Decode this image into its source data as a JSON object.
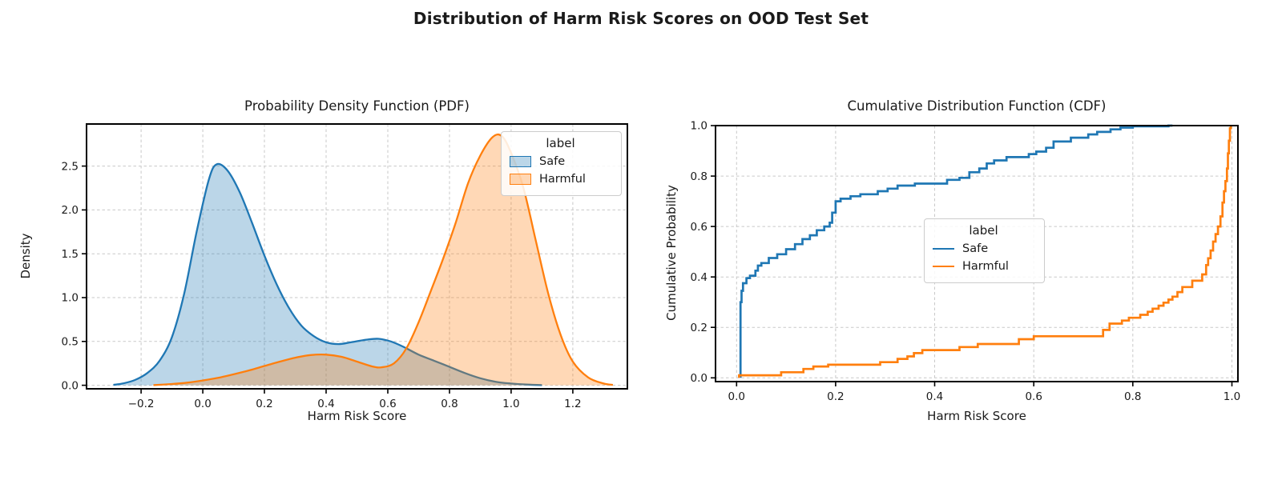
{
  "figure": {
    "suptitle": "Distribution of Harm Risk Scores on OOD Test Set"
  },
  "palette": {
    "safe": "#1f77b4",
    "harmful": "#ff7f0e",
    "grid": "#c9c9c9",
    "spine": "#000000"
  },
  "chart_data": [
    {
      "type": "area",
      "subtype": "kde-pdf",
      "title": "Probability Density Function (PDF)",
      "xlabel": "Harm Risk Score",
      "ylabel": "Density",
      "xlim": [
        -0.377,
        1.377
      ],
      "ylim": [
        -0.04,
        2.98
      ],
      "grid": true,
      "xticks": [
        -0.2,
        0.0,
        0.2,
        0.4,
        0.6,
        0.8,
        1.0,
        1.2
      ],
      "xtick_labels": [
        "−0.2",
        "0.0",
        "0.2",
        "0.4",
        "0.6",
        "0.8",
        "1.0",
        "1.2"
      ],
      "yticks": [
        0.0,
        0.5,
        1.0,
        1.5,
        2.0,
        2.5
      ],
      "ytick_labels": [
        "0.0",
        "0.5",
        "1.0",
        "1.5",
        "2.0",
        "2.5"
      ],
      "legend": {
        "title": "label",
        "entries": [
          "Safe",
          "Harmful"
        ],
        "position": "upper right",
        "swatch": "patch"
      },
      "series": [
        {
          "name": "Safe",
          "color": "#1f77b4",
          "fill_opacity": 0.3,
          "points": [
            [
              -0.29,
              0.005
            ],
            [
              -0.26,
              0.02
            ],
            [
              -0.22,
              0.06
            ],
            [
              -0.18,
              0.14
            ],
            [
              -0.14,
              0.28
            ],
            [
              -0.1,
              0.55
            ],
            [
              -0.06,
              1.05
            ],
            [
              -0.02,
              1.75
            ],
            [
              0.02,
              2.35
            ],
            [
              0.045,
              2.52
            ],
            [
              0.08,
              2.45
            ],
            [
              0.12,
              2.2
            ],
            [
              0.16,
              1.85
            ],
            [
              0.2,
              1.48
            ],
            [
              0.24,
              1.15
            ],
            [
              0.28,
              0.88
            ],
            [
              0.32,
              0.68
            ],
            [
              0.36,
              0.56
            ],
            [
              0.4,
              0.49
            ],
            [
              0.44,
              0.47
            ],
            [
              0.48,
              0.49
            ],
            [
              0.53,
              0.52
            ],
            [
              0.57,
              0.53
            ],
            [
              0.61,
              0.5
            ],
            [
              0.65,
              0.44
            ],
            [
              0.7,
              0.35
            ],
            [
              0.75,
              0.28
            ],
            [
              0.8,
              0.21
            ],
            [
              0.85,
              0.14
            ],
            [
              0.9,
              0.08
            ],
            [
              0.95,
              0.04
            ],
            [
              1.0,
              0.02
            ],
            [
              1.05,
              0.008
            ],
            [
              1.1,
              0.002
            ]
          ]
        },
        {
          "name": "Harmful",
          "color": "#ff7f0e",
          "fill_opacity": 0.3,
          "points": [
            [
              -0.16,
              0.002
            ],
            [
              -0.1,
              0.015
            ],
            [
              -0.05,
              0.03
            ],
            [
              0.0,
              0.055
            ],
            [
              0.05,
              0.085
            ],
            [
              0.1,
              0.125
            ],
            [
              0.15,
              0.17
            ],
            [
              0.2,
              0.22
            ],
            [
              0.25,
              0.27
            ],
            [
              0.3,
              0.315
            ],
            [
              0.35,
              0.345
            ],
            [
              0.4,
              0.35
            ],
            [
              0.45,
              0.325
            ],
            [
              0.5,
              0.27
            ],
            [
              0.55,
              0.215
            ],
            [
              0.58,
              0.205
            ],
            [
              0.62,
              0.25
            ],
            [
              0.66,
              0.42
            ],
            [
              0.7,
              0.72
            ],
            [
              0.74,
              1.08
            ],
            [
              0.78,
              1.45
            ],
            [
              0.82,
              1.85
            ],
            [
              0.86,
              2.3
            ],
            [
              0.9,
              2.62
            ],
            [
              0.94,
              2.83
            ],
            [
              0.97,
              2.84
            ],
            [
              1.0,
              2.65
            ],
            [
              1.04,
              2.25
            ],
            [
              1.08,
              1.65
            ],
            [
              1.12,
              1.05
            ],
            [
              1.16,
              0.58
            ],
            [
              1.2,
              0.27
            ],
            [
              1.25,
              0.09
            ],
            [
              1.3,
              0.02
            ],
            [
              1.33,
              0.005
            ]
          ]
        }
      ]
    },
    {
      "type": "line",
      "subtype": "ecdf-step",
      "title": "Cumulative Distribution Function (CDF)",
      "xlabel": "Harm Risk Score",
      "ylabel": "Cumulative Probability",
      "xlim": [
        -0.0425,
        1.0122
      ],
      "ylim": [
        -0.015,
        1.0
      ],
      "grid": true,
      "xticks": [
        0.0,
        0.2,
        0.4,
        0.6,
        0.8,
        1.0
      ],
      "xtick_labels": [
        "0.0",
        "0.2",
        "0.4",
        "0.6",
        "0.8",
        "1.0"
      ],
      "yticks": [
        0.0,
        0.2,
        0.4,
        0.6,
        0.8,
        1.0
      ],
      "ytick_labels": [
        "0.0",
        "0.2",
        "0.4",
        "0.6",
        "0.8",
        "1.0"
      ],
      "legend": {
        "title": "label",
        "entries": [
          "Safe",
          "Harmful"
        ],
        "position": "center",
        "swatch": "line"
      },
      "series": [
        {
          "name": "Safe",
          "color": "#1f77b4",
          "points": [
            [
              0.008,
              0.0
            ],
            [
              0.008,
              0.3
            ],
            [
              0.01,
              0.3
            ],
            [
              0.01,
              0.345
            ],
            [
              0.013,
              0.345
            ],
            [
              0.013,
              0.375
            ],
            [
              0.02,
              0.375
            ],
            [
              0.02,
              0.395
            ],
            [
              0.027,
              0.395
            ],
            [
              0.027,
              0.405
            ],
            [
              0.038,
              0.405
            ],
            [
              0.038,
              0.425
            ],
            [
              0.043,
              0.425
            ],
            [
              0.043,
              0.445
            ],
            [
              0.05,
              0.445
            ],
            [
              0.05,
              0.455
            ],
            [
              0.065,
              0.455
            ],
            [
              0.065,
              0.475
            ],
            [
              0.082,
              0.475
            ],
            [
              0.082,
              0.49
            ],
            [
              0.1,
              0.49
            ],
            [
              0.1,
              0.51
            ],
            [
              0.118,
              0.51
            ],
            [
              0.118,
              0.53
            ],
            [
              0.133,
              0.53
            ],
            [
              0.133,
              0.55
            ],
            [
              0.148,
              0.55
            ],
            [
              0.148,
              0.565
            ],
            [
              0.162,
              0.565
            ],
            [
              0.162,
              0.585
            ],
            [
              0.177,
              0.585
            ],
            [
              0.177,
              0.6
            ],
            [
              0.188,
              0.6
            ],
            [
              0.188,
              0.615
            ],
            [
              0.193,
              0.615
            ],
            [
              0.193,
              0.655
            ],
            [
              0.2,
              0.655
            ],
            [
              0.2,
              0.7
            ],
            [
              0.21,
              0.7
            ],
            [
              0.21,
              0.71
            ],
            [
              0.23,
              0.71
            ],
            [
              0.23,
              0.72
            ],
            [
              0.25,
              0.72
            ],
            [
              0.25,
              0.728
            ],
            [
              0.285,
              0.728
            ],
            [
              0.285,
              0.74
            ],
            [
              0.305,
              0.74
            ],
            [
              0.305,
              0.75
            ],
            [
              0.325,
              0.75
            ],
            [
              0.325,
              0.762
            ],
            [
              0.36,
              0.762
            ],
            [
              0.36,
              0.77
            ],
            [
              0.425,
              0.77
            ],
            [
              0.425,
              0.785
            ],
            [
              0.45,
              0.785
            ],
            [
              0.45,
              0.793
            ],
            [
              0.47,
              0.793
            ],
            [
              0.47,
              0.815
            ],
            [
              0.49,
              0.815
            ],
            [
              0.49,
              0.83
            ],
            [
              0.505,
              0.83
            ],
            [
              0.505,
              0.85
            ],
            [
              0.52,
              0.85
            ],
            [
              0.52,
              0.862
            ],
            [
              0.545,
              0.862
            ],
            [
              0.545,
              0.875
            ],
            [
              0.59,
              0.875
            ],
            [
              0.59,
              0.887
            ],
            [
              0.605,
              0.887
            ],
            [
              0.605,
              0.897
            ],
            [
              0.625,
              0.897
            ],
            [
              0.625,
              0.912
            ],
            [
              0.64,
              0.912
            ],
            [
              0.64,
              0.937
            ],
            [
              0.675,
              0.937
            ],
            [
              0.675,
              0.952
            ],
            [
              0.71,
              0.952
            ],
            [
              0.71,
              0.965
            ],
            [
              0.728,
              0.965
            ],
            [
              0.728,
              0.975
            ],
            [
              0.755,
              0.975
            ],
            [
              0.755,
              0.985
            ],
            [
              0.775,
              0.985
            ],
            [
              0.775,
              0.992
            ],
            [
              0.8,
              0.992
            ],
            [
              0.8,
              0.997
            ],
            [
              0.872,
              0.997
            ],
            [
              0.872,
              1.0
            ],
            [
              0.88,
              1.0
            ]
          ]
        },
        {
          "name": "Harmful",
          "color": "#ff7f0e",
          "points": [
            [
              0.005,
              0.0
            ],
            [
              0.005,
              0.01
            ],
            [
              0.09,
              0.01
            ],
            [
              0.09,
              0.022
            ],
            [
              0.135,
              0.022
            ],
            [
              0.135,
              0.035
            ],
            [
              0.155,
              0.035
            ],
            [
              0.155,
              0.045
            ],
            [
              0.185,
              0.045
            ],
            [
              0.185,
              0.052
            ],
            [
              0.29,
              0.052
            ],
            [
              0.29,
              0.062
            ],
            [
              0.325,
              0.062
            ],
            [
              0.325,
              0.075
            ],
            [
              0.345,
              0.075
            ],
            [
              0.345,
              0.085
            ],
            [
              0.358,
              0.085
            ],
            [
              0.358,
              0.098
            ],
            [
              0.375,
              0.098
            ],
            [
              0.375,
              0.11
            ],
            [
              0.45,
              0.11
            ],
            [
              0.45,
              0.122
            ],
            [
              0.487,
              0.122
            ],
            [
              0.487,
              0.134
            ],
            [
              0.57,
              0.134
            ],
            [
              0.57,
              0.153
            ],
            [
              0.6,
              0.153
            ],
            [
              0.6,
              0.165
            ],
            [
              0.74,
              0.165
            ],
            [
              0.74,
              0.19
            ],
            [
              0.753,
              0.19
            ],
            [
              0.753,
              0.215
            ],
            [
              0.778,
              0.215
            ],
            [
              0.778,
              0.227
            ],
            [
              0.792,
              0.227
            ],
            [
              0.792,
              0.238
            ],
            [
              0.815,
              0.238
            ],
            [
              0.815,
              0.25
            ],
            [
              0.83,
              0.25
            ],
            [
              0.83,
              0.262
            ],
            [
              0.84,
              0.262
            ],
            [
              0.84,
              0.274
            ],
            [
              0.852,
              0.274
            ],
            [
              0.852,
              0.286
            ],
            [
              0.862,
              0.286
            ],
            [
              0.862,
              0.298
            ],
            [
              0.872,
              0.298
            ],
            [
              0.872,
              0.31
            ],
            [
              0.88,
              0.31
            ],
            [
              0.88,
              0.322
            ],
            [
              0.89,
              0.322
            ],
            [
              0.89,
              0.34
            ],
            [
              0.9,
              0.34
            ],
            [
              0.9,
              0.36
            ],
            [
              0.92,
              0.36
            ],
            [
              0.92,
              0.385
            ],
            [
              0.94,
              0.385
            ],
            [
              0.94,
              0.41
            ],
            [
              0.948,
              0.41
            ],
            [
              0.948,
              0.447
            ],
            [
              0.952,
              0.447
            ],
            [
              0.952,
              0.474
            ],
            [
              0.957,
              0.474
            ],
            [
              0.957,
              0.505
            ],
            [
              0.962,
              0.505
            ],
            [
              0.962,
              0.54
            ],
            [
              0.967,
              0.54
            ],
            [
              0.967,
              0.57
            ],
            [
              0.972,
              0.57
            ],
            [
              0.972,
              0.6
            ],
            [
              0.977,
              0.6
            ],
            [
              0.977,
              0.64
            ],
            [
              0.981,
              0.64
            ],
            [
              0.981,
              0.695
            ],
            [
              0.984,
              0.695
            ],
            [
              0.984,
              0.74
            ],
            [
              0.987,
              0.74
            ],
            [
              0.987,
              0.78
            ],
            [
              0.99,
              0.78
            ],
            [
              0.99,
              0.83
            ],
            [
              0.992,
              0.83
            ],
            [
              0.992,
              0.89
            ],
            [
              0.994,
              0.89
            ],
            [
              0.994,
              0.94
            ],
            [
              0.996,
              0.94
            ],
            [
              0.996,
              0.99
            ],
            [
              0.998,
              0.99
            ],
            [
              0.998,
              1.0
            ]
          ]
        }
      ]
    }
  ]
}
